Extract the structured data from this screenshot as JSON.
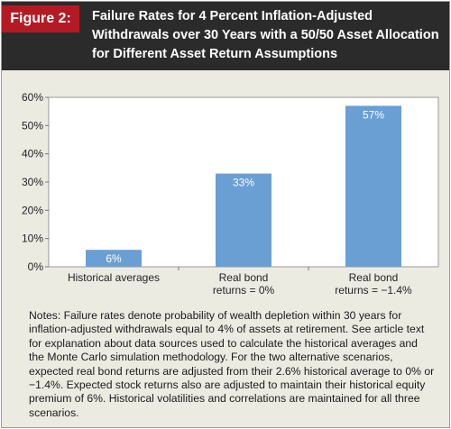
{
  "figure": {
    "label": "Figure 2:",
    "title": "Failure Rates for 4 Percent Inflation-Adjusted Withdrawals over 30 Years with a 50/50 Asset Allocation for Different Asset Return Assumptions",
    "notes": "Notes: Failure rates denote probability of wealth depletion within 30 years for inflation-adjusted withdrawals equal to 4% of assets at retirement. See article text for explanation about data sources used to calculate the historical averages and the Monte Carlo simulation methodology. For the two alternative scenarios, expected real bond returns are adjusted from their 2.6% historical average to 0% or −1.4%. Expected stock returns also are adjusted to maintain their historical equity premium of 6%. Historical volatilities and correlations are maintained for all three scenarios."
  },
  "colors": {
    "bar": "#6a9fd4",
    "header": "#2b2b2b",
    "tag": "#b41a23",
    "background": "#ecebe2",
    "plot_background": "#ffffff"
  },
  "chart_data": {
    "type": "bar",
    "categories": [
      [
        "Historical averages"
      ],
      [
        "Real bond",
        "returns = 0%"
      ],
      [
        "Real bond",
        "returns = −1.4%"
      ]
    ],
    "values": [
      6,
      33,
      57
    ],
    "data_labels": [
      "6%",
      "33%",
      "57%"
    ],
    "ylim": [
      0,
      60
    ],
    "yticks": [
      0,
      10,
      20,
      30,
      40,
      50,
      60
    ],
    "ytick_labels": [
      "0%",
      "10%",
      "20%",
      "30%",
      "40%",
      "50%",
      "60%"
    ],
    "grid": false,
    "legend": "none"
  }
}
